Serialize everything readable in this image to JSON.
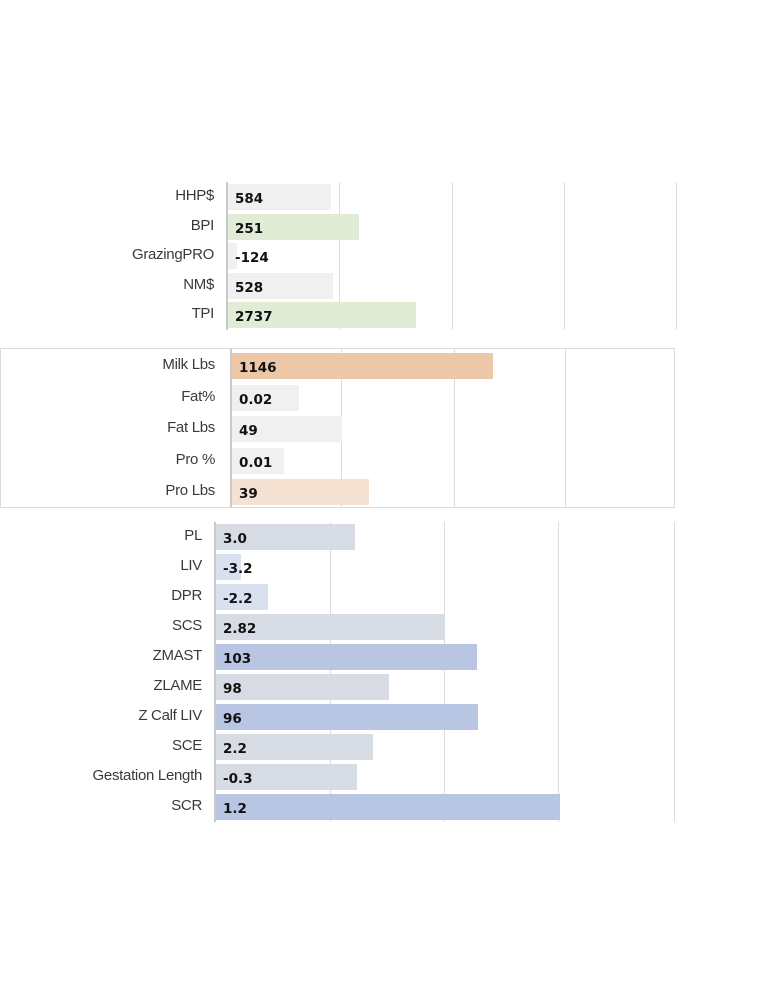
{
  "chart_data": [
    {
      "type": "bar",
      "orientation": "horizontal",
      "categories": [
        "HHP$",
        "BPI",
        "GrazingPRO",
        "NM$",
        "TPI"
      ],
      "values": [
        584,
        251,
        -124,
        528,
        2737
      ],
      "labels": [
        "584",
        "251",
        "-124",
        "528",
        "2737"
      ],
      "colors": [
        "#f0f0f0",
        "#e1ecd6",
        "#f0f0f0",
        "#f0f0f0",
        "#e1ecd6"
      ],
      "grid": true,
      "legend": "none"
    },
    {
      "type": "bar",
      "orientation": "horizontal",
      "categories": [
        "Milk Lbs",
        "Fat%",
        "Fat Lbs",
        "Pro %",
        "Pro Lbs"
      ],
      "values": [
        1146,
        0.02,
        49,
        0.01,
        39
      ],
      "labels": [
        "1146",
        "0.02",
        "49",
        "0.01",
        "39"
      ],
      "colors": [
        "#ecc8a9",
        "#f0f0f0",
        "#f0f0f0",
        "#f0f0f0",
        "#f5e2d2"
      ],
      "grid": true,
      "legend": "none"
    },
    {
      "type": "bar",
      "orientation": "horizontal",
      "categories": [
        "PL",
        "LIV",
        "DPR",
        "SCS",
        "ZMAST",
        "ZLAME",
        "Z Calf LIV",
        "SCE",
        "Gestation Length",
        "SCR"
      ],
      "values": [
        3.0,
        -3.2,
        -2.2,
        2.82,
        103,
        98,
        96,
        2.2,
        -0.3,
        1.2
      ],
      "labels": [
        "3.0",
        "-3.2",
        "-2.2",
        "2.82",
        "103",
        "98",
        "96",
        "2.2",
        "-0.3",
        "1.2"
      ],
      "colors": [
        "#d7dce4",
        "#d9e0f0",
        "#d9e0f0",
        "#d7dce4",
        "#b8c5e3",
        "#d7dce4",
        "#b8c5e3",
        "#d7dce4",
        "#d7dce4",
        "#b8c5e3"
      ],
      "grid": true,
      "legend": "none"
    }
  ]
}
